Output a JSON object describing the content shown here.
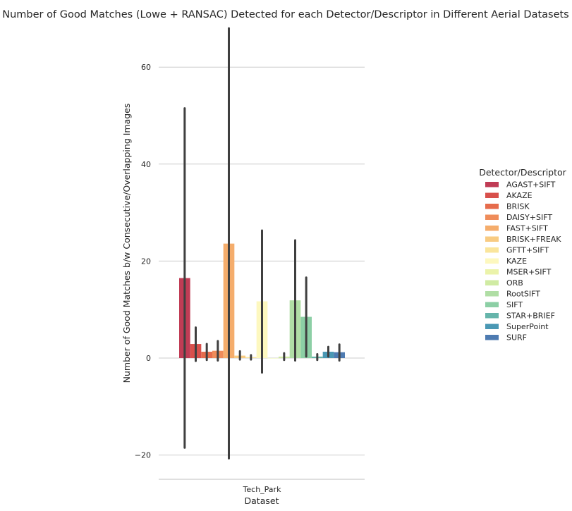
{
  "chart_data": {
    "type": "bar",
    "title": "Number of Good Matches (Lowe + RANSAC) Detected for each Detector/Descriptor in Different Aerial Datasets",
    "xlabel": "Dataset",
    "ylabel": "Number of Good Matches b/w Consecutive/Overlapping Images",
    "categories": [
      "Tech_Park"
    ],
    "ylim": [
      -25,
      69
    ],
    "yticks": [
      -20,
      0,
      20,
      40,
      60
    ],
    "grid": "horizontal",
    "legend": {
      "title": "Detector/Descriptor",
      "position": "right"
    },
    "series": [
      {
        "name": "AGAST+SIFT",
        "values": [
          16.5
        ],
        "ci": [
          [
            -18.5,
            51.5
          ]
        ],
        "color": "#c03c55"
      },
      {
        "name": "AKAZE",
        "values": [
          2.9
        ],
        "ci": [
          [
            -0.6,
            6.3
          ]
        ],
        "color": "#d8504b"
      },
      {
        "name": "BRISK",
        "values": [
          1.3
        ],
        "ci": [
          [
            -0.4,
            2.9
          ]
        ],
        "color": "#e66c4c"
      },
      {
        "name": "DAISY+SIFT",
        "values": [
          1.5
        ],
        "ci": [
          [
            -0.5,
            3.5
          ]
        ],
        "color": "#ef8c5a"
      },
      {
        "name": "FAST+SIFT",
        "values": [
          23.6
        ],
        "ci": [
          [
            -20.7,
            68.0
          ]
        ],
        "color": "#f5ad6c"
      },
      {
        "name": "BRISK+FREAK",
        "values": [
          0.5
        ],
        "ci": [
          [
            -0.3,
            1.4
          ]
        ],
        "color": "#f8cb82"
      },
      {
        "name": "GFTT+SIFT",
        "values": [
          0.2
        ],
        "ci": [
          [
            -0.3,
            0.6
          ]
        ],
        "color": "#fae59c"
      },
      {
        "name": "KAZE",
        "values": [
          11.7
        ],
        "ci": [
          [
            -3.0,
            26.3
          ]
        ],
        "color": "#fdf8bf"
      },
      {
        "name": "MSER+SIFT",
        "values": [
          0.0
        ],
        "ci": [
          [
            0.0,
            0.0
          ]
        ],
        "color": "#ebf3aa"
      },
      {
        "name": "ORB",
        "values": [
          0.3
        ],
        "ci": [
          [
            -0.4,
            1.0
          ]
        ],
        "color": "#d0eba3"
      },
      {
        "name": "RootSIFT",
        "values": [
          11.9
        ],
        "ci": [
          [
            -0.5,
            24.3
          ]
        ],
        "color": "#b0dea5"
      },
      {
        "name": "SIFT",
        "values": [
          8.5
        ],
        "ci": [
          [
            0.3,
            16.6
          ]
        ],
        "color": "#8ccfa5"
      },
      {
        "name": "STAR+BRIEF",
        "values": [
          0.3
        ],
        "ci": [
          [
            -0.4,
            0.8
          ]
        ],
        "color": "#66b5ab"
      },
      {
        "name": "SuperPoint",
        "values": [
          1.3
        ],
        "ci": [
          [
            0.3,
            2.3
          ]
        ],
        "color": "#4a98b4"
      },
      {
        "name": "SURF",
        "values": [
          1.2
        ],
        "ci": [
          [
            -0.5,
            2.8
          ]
        ],
        "color": "#4e7bb1"
      }
    ]
  }
}
